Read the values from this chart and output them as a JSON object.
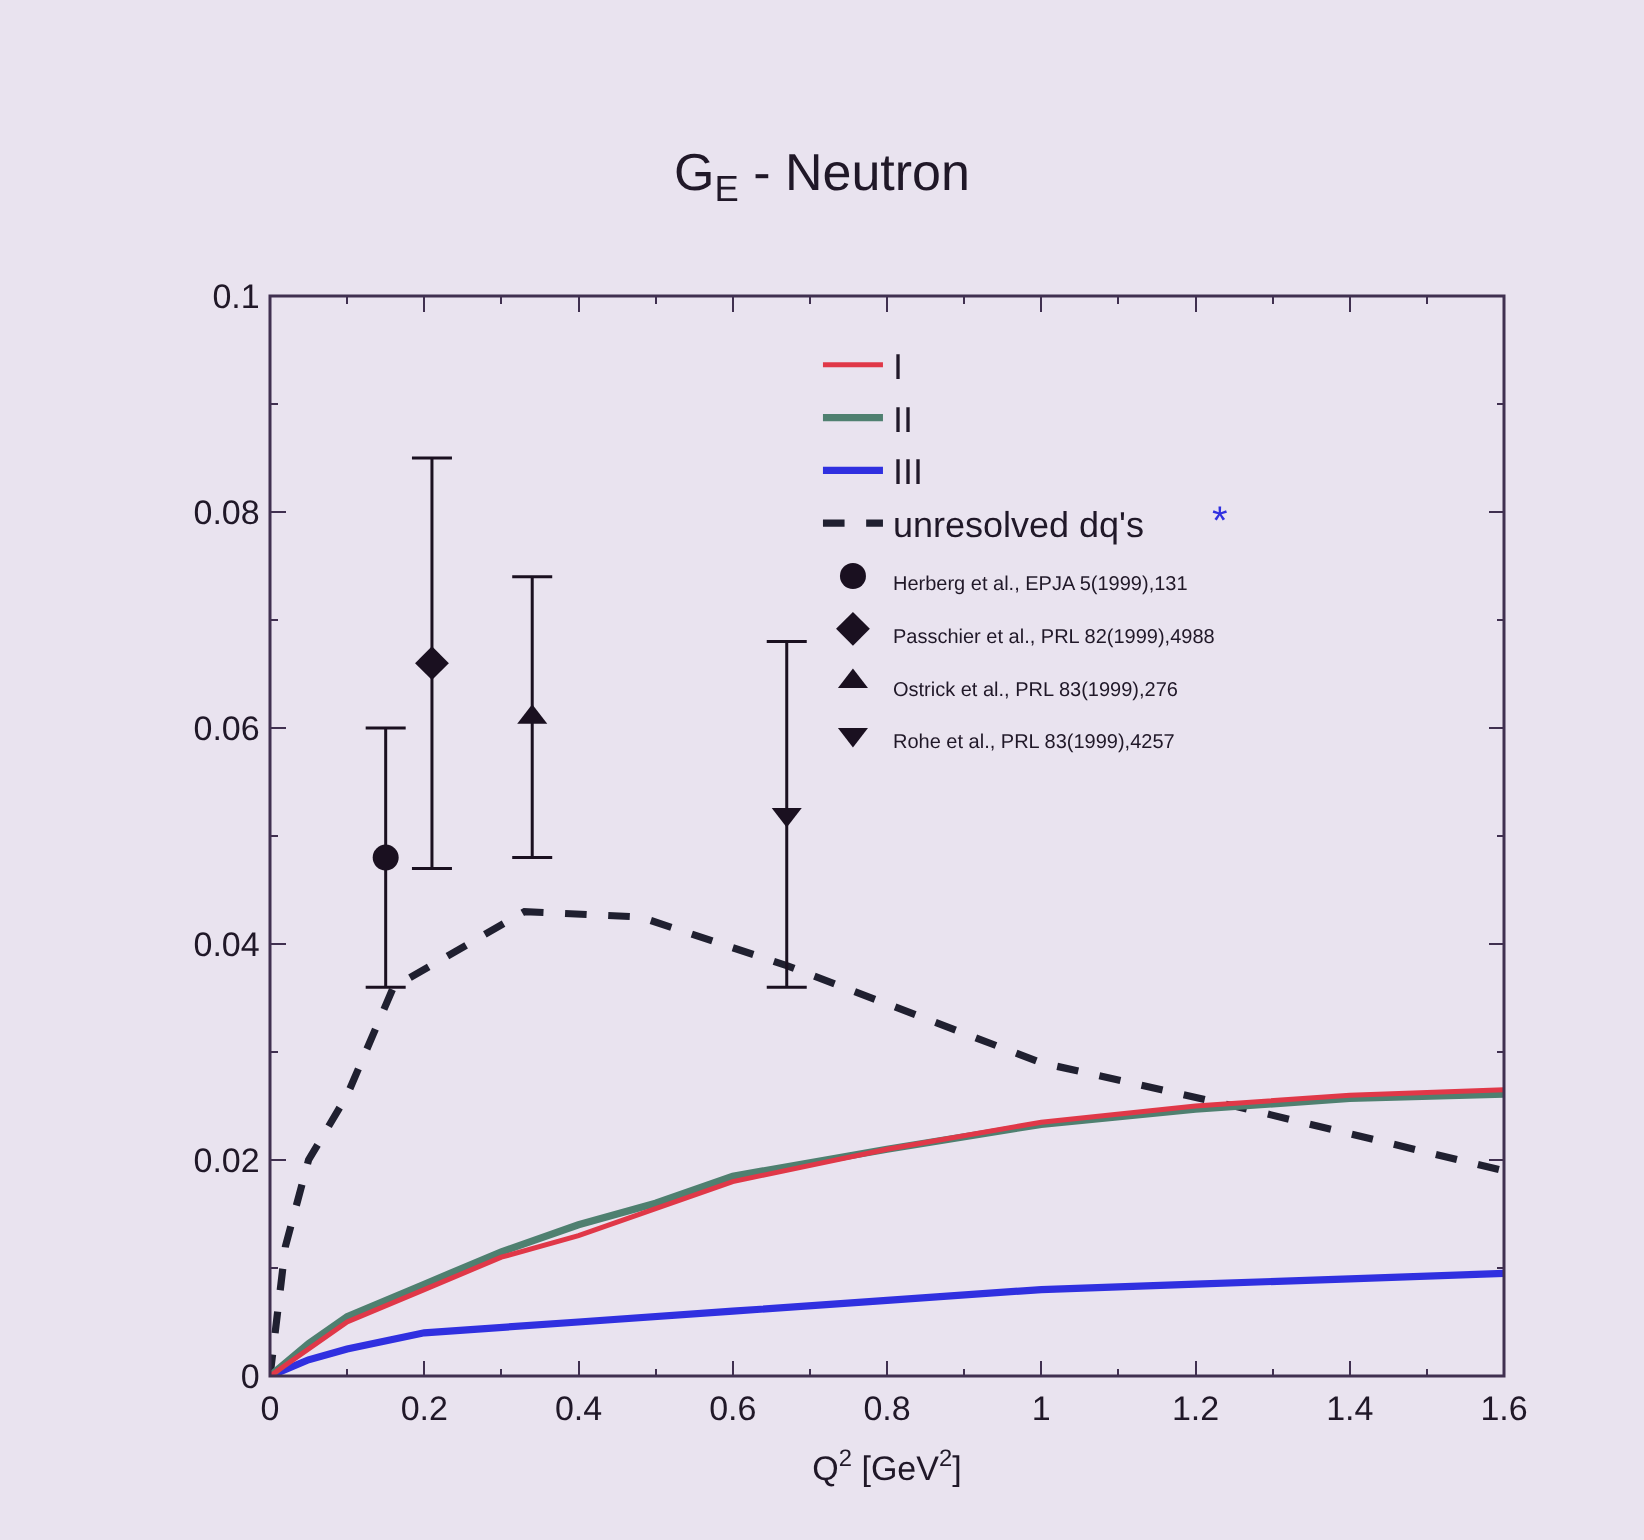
{
  "chart_data": {
    "type": "line",
    "title": "G$_{E}$ - Neutron",
    "xlabel": "Q$^{2}$ [GeV$^{2}$]",
    "xlim": [
      0,
      1.6
    ],
    "xticks": [
      0,
      0.2,
      0.4,
      0.6,
      0.8,
      1,
      1.2,
      1.4,
      1.6
    ],
    "ylim": [
      0,
      0.1
    ],
    "yticks": [
      0,
      0.02,
      0.04,
      0.06,
      0.08,
      0.1
    ],
    "grid": false,
    "legend": "top right",
    "annotations": [
      "*"
    ],
    "series": [
      {
        "name": "I",
        "color": "#e03848",
        "line_style": "solid",
        "x": [
          0,
          0.05,
          0.1,
          0.2,
          0.3,
          0.4,
          0.5,
          0.6,
          0.8,
          1.0,
          1.2,
          1.4,
          1.6
        ],
        "values": [
          0,
          0.0025,
          0.005,
          0.008,
          0.011,
          0.013,
          0.0155,
          0.018,
          0.021,
          0.0235,
          0.025,
          0.026,
          0.0265
        ]
      },
      {
        "name": "II",
        "color": "#4f8070",
        "line_style": "solid",
        "x": [
          0,
          0.05,
          0.1,
          0.2,
          0.3,
          0.4,
          0.5,
          0.6,
          0.8,
          1.0,
          1.2,
          1.4,
          1.6
        ],
        "values": [
          0,
          0.003,
          0.0055,
          0.0085,
          0.0115,
          0.014,
          0.016,
          0.0185,
          0.021,
          0.0233,
          0.0247,
          0.0257,
          0.0261
        ]
      },
      {
        "name": "III",
        "color": "#3030e0",
        "line_style": "solid",
        "x": [
          0,
          0.05,
          0.1,
          0.2,
          0.4,
          0.6,
          0.8,
          1.0,
          1.2,
          1.4,
          1.6
        ],
        "values": [
          0,
          0.0015,
          0.0025,
          0.004,
          0.005,
          0.006,
          0.007,
          0.008,
          0.0085,
          0.009,
          0.0095
        ]
      },
      {
        "name": "unresolved dq's",
        "color": "#202030",
        "line_style": "dashed",
        "x": [
          0,
          0.02,
          0.05,
          0.1,
          0.16,
          0.33,
          0.48,
          0.67,
          1.0,
          1.25,
          1.6
        ],
        "values": [
          0,
          0.012,
          0.02,
          0.026,
          0.036,
          0.043,
          0.0425,
          0.038,
          0.029,
          0.025,
          0.019
        ]
      },
      {
        "name": "Herberg et al., EPJA 5(1999),131",
        "type": "scatter",
        "marker": "circle",
        "color": "#1a1020",
        "x": [
          0.15
        ],
        "values": [
          0.048
        ],
        "errors": [
          [
            0.036,
            0.06
          ]
        ]
      },
      {
        "name": "Passchier et al., PRL 82(1999),4988",
        "type": "scatter",
        "marker": "diamond",
        "color": "#1a1020",
        "x": [
          0.21
        ],
        "values": [
          0.066
        ],
        "errors": [
          [
            0.047,
            0.085
          ]
        ]
      },
      {
        "name": "Ostrick et al., PRL 83(1999),276",
        "type": "scatter",
        "marker": "triangle",
        "color": "#1a1020",
        "x": [
          0.34
        ],
        "values": [
          0.061
        ],
        "errors": [
          [
            0.048,
            0.074
          ]
        ]
      },
      {
        "name": "Rohe et al., PRL 83(1999),4257",
        "type": "scatter",
        "marker": "triangle-down",
        "color": "#1a1020",
        "x": [
          0.67
        ],
        "values": [
          0.052
        ],
        "errors": [
          [
            0.036,
            0.068
          ]
        ]
      }
    ]
  }
}
